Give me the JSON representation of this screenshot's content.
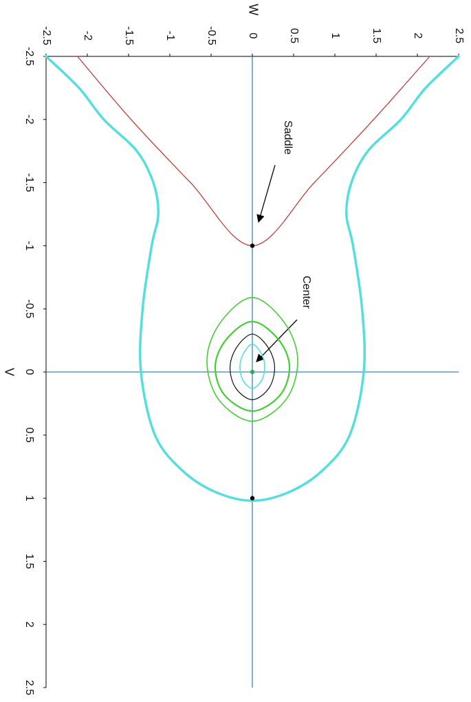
{
  "chart_data": {
    "type": "line",
    "xlabel": "W",
    "ylabel": "V",
    "xlim": [
      -2.5,
      2.5
    ],
    "ylim": [
      -2.5,
      2.5
    ],
    "y_inverted": true,
    "xticks": [
      -2.5,
      -2,
      -1.5,
      -1,
      -0.5,
      0,
      0.5,
      1,
      1.5,
      2,
      2.5
    ],
    "yticks": [
      -2.5,
      -2,
      -1.5,
      -1,
      -0.5,
      0,
      0.5,
      1,
      1.5,
      2,
      2.5
    ],
    "axis_color": "#3a84b8",
    "series": [
      {
        "color": "#55dede",
        "width": 3.5,
        "x": [
          -2.5,
          -2.1,
          -1.8,
          -1.4,
          -1.2,
          -1.14,
          -1.22,
          -1.33,
          -1.35,
          -1.18,
          -0.85,
          -0.45,
          0,
          0.45,
          0.85,
          1.18,
          1.35,
          1.33,
          1.22,
          1.14,
          1.2,
          1.4,
          1.8,
          2.1,
          2.5
        ],
        "values": [
          -2.5,
          -2.25,
          -2.0,
          -1.75,
          -1.5,
          -1.25,
          -1.0,
          -0.5,
          0,
          0.5,
          0.78,
          0.95,
          1.02,
          0.95,
          0.78,
          0.5,
          0,
          -0.5,
          -1.0,
          -1.25,
          -1.5,
          -1.75,
          -2.0,
          -2.25,
          -2.5
        ]
      },
      {
        "color": "#c0302a",
        "width": 1.2,
        "x": [
          -2.12,
          -1.47,
          -0.75,
          0,
          0.75,
          1.47,
          2.15
        ],
        "values": [
          -2.5,
          -2.0,
          -1.5,
          -1.0,
          -1.5,
          -2.0,
          -2.5
        ]
      },
      {
        "color": "#44cc33",
        "width": 1.6,
        "x": [
          0,
          0.385,
          0.55,
          0.413,
          0,
          -0.413,
          -0.55,
          -0.385,
          0
        ],
        "values": [
          -0.59,
          -0.394,
          -0.1,
          0.214,
          0.39,
          0.214,
          -0.1,
          -0.394,
          -0.59
        ]
      },
      {
        "color": "#44cc33",
        "width": 2.2,
        "x": [
          0,
          0.315,
          0.45,
          0.338,
          0,
          -0.338,
          -0.45,
          -0.315,
          0
        ],
        "values": [
          -0.4,
          -0.258,
          -0.045,
          0.182,
          0.31,
          0.182,
          -0.045,
          -0.258,
          -0.4
        ]
      },
      {
        "color": "#111111",
        "width": 1.2,
        "x": [
          0,
          0.189,
          0.27,
          0.203,
          0,
          -0.203,
          -0.27,
          -0.189,
          0
        ],
        "values": [
          -0.3,
          -0.196,
          -0.04,
          0.126,
          0.22,
          0.126,
          -0.04,
          -0.196,
          -0.3
        ]
      },
      {
        "color": "#55dede",
        "width": 1.6,
        "x": [
          0,
          0.105,
          0.15,
          0.113,
          0,
          -0.113,
          -0.15,
          -0.105,
          0
        ],
        "values": [
          -0.22,
          -0.15,
          -0.045,
          0.067,
          0.13,
          0.067,
          -0.045,
          -0.15,
          -0.22
        ]
      }
    ],
    "points": [
      {
        "color": "#000000",
        "x": [
          0,
          0
        ],
        "values": [
          -1,
          1
        ]
      },
      {
        "color": "#33aa55",
        "x": [
          0
        ],
        "values": [
          0
        ]
      }
    ],
    "annotations": [
      {
        "text": "Saddle"
      },
      {
        "text": "Center"
      }
    ]
  }
}
